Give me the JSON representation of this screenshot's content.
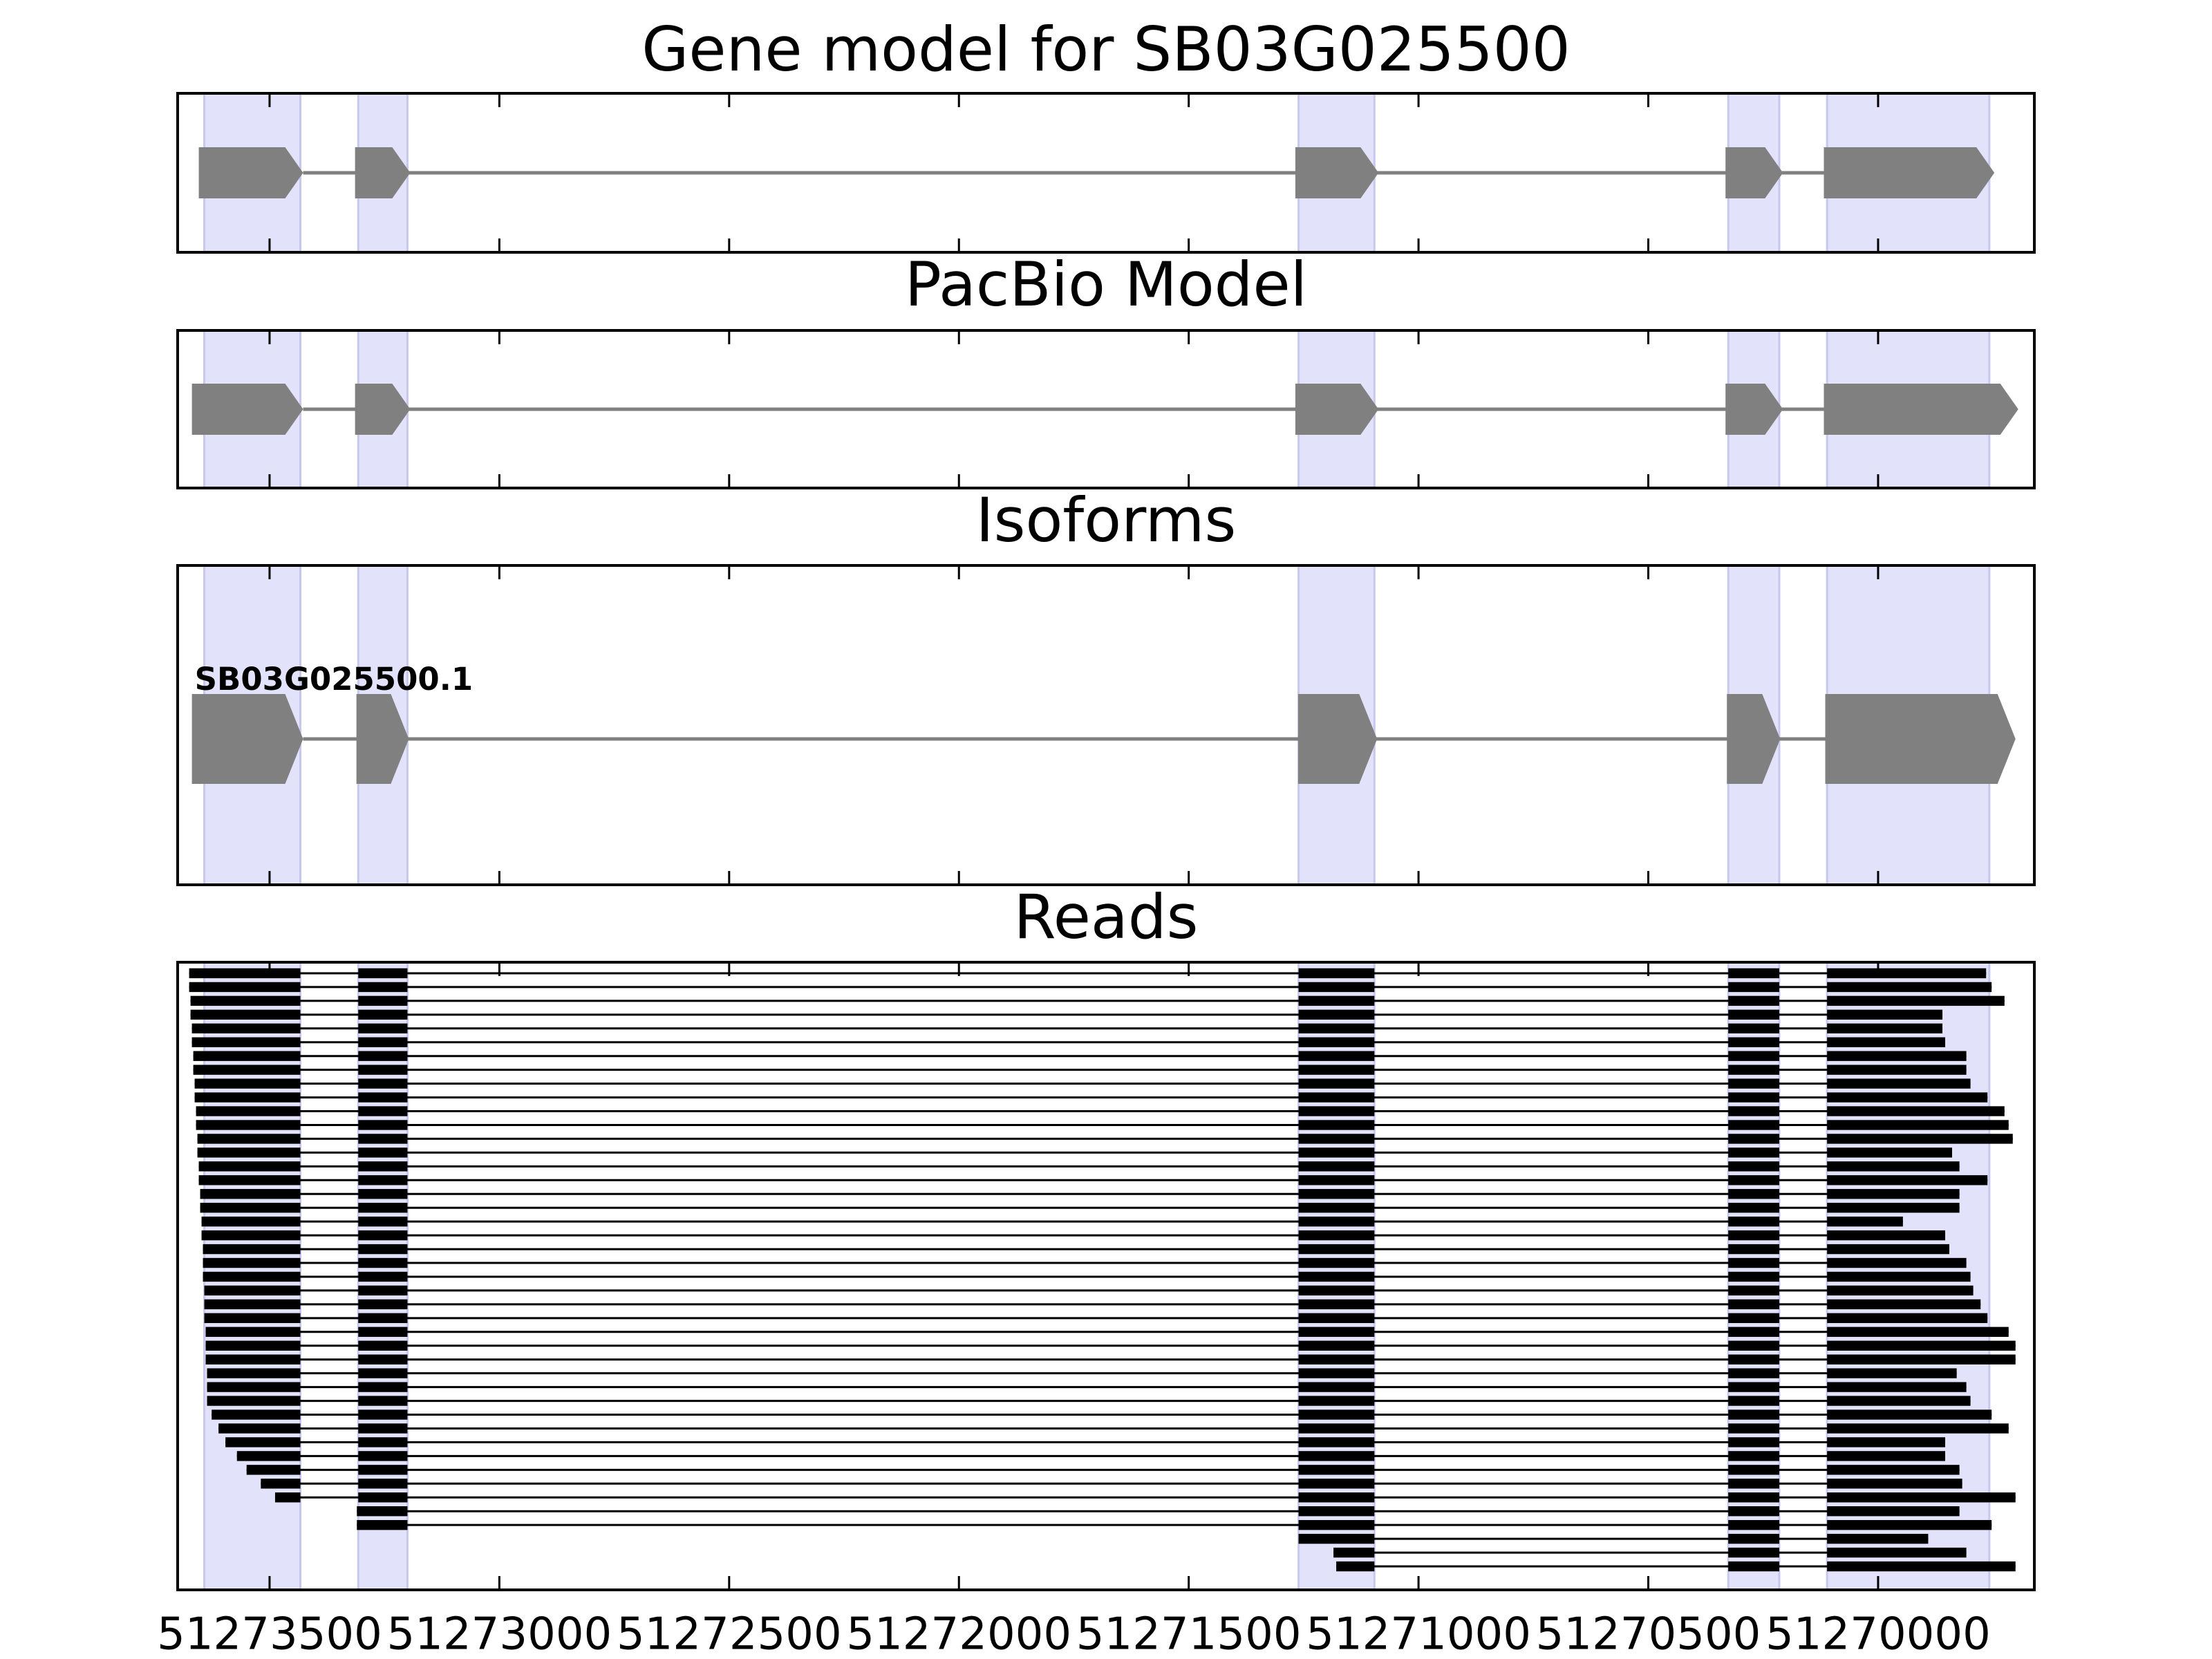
{
  "chart_data": {
    "type": "gene_track",
    "xlim": [
      51273700,
      51269660
    ],
    "xticks": [
      51273500,
      51273000,
      51272500,
      51272000,
      51271500,
      51271000,
      51270500,
      51270000
    ],
    "highlight_exons": [
      [
        51273642,
        51273433
      ],
      [
        51273307,
        51273200
      ],
      [
        51271261,
        51271096
      ],
      [
        51270326,
        51270215
      ],
      [
        51270111,
        51269758
      ]
    ],
    "highlight_color": "#e2e2fa",
    "exon_color": "#808080",
    "read_color": "#000000",
    "panels": [
      {
        "title": "Gene model for SB03G025500",
        "exons": [
          [
            51273654,
            51273427
          ],
          [
            51273314,
            51273194
          ],
          [
            51271268,
            51271087
          ],
          [
            51270332,
            51270207
          ],
          [
            51270118,
            51269747
          ]
        ]
      },
      {
        "title": "PacBio Model",
        "exons": [
          [
            51273669,
            51273427
          ],
          [
            51273314,
            51273194
          ],
          [
            51271268,
            51271087
          ],
          [
            51270332,
            51270207
          ],
          [
            51270118,
            51269695
          ]
        ]
      },
      {
        "title": "Isoforms",
        "label": "SB03G025500.1",
        "exons": [
          [
            51273669,
            51273427
          ],
          [
            51273311,
            51273197
          ],
          [
            51271262,
            51271090
          ],
          [
            51270329,
            51270213
          ],
          [
            51270115,
            51269701
          ]
        ]
      },
      {
        "title": "Reads",
        "read_starts": [
          51273675,
          51273675,
          51273672,
          51273672,
          51273669,
          51273669,
          51273666,
          51273666,
          51273663,
          51273663,
          51273660,
          51273660,
          51273657,
          51273657,
          51273654,
          51273654,
          51273651,
          51273651,
          51273648,
          51273648,
          51273645,
          51273645,
          51273645,
          51273642,
          51273642,
          51273642,
          51273639,
          51273639,
          51273639,
          51273636,
          51273636,
          51273636,
          51273626,
          51273611,
          51273596,
          51273571,
          51273550,
          51273519,
          51273488,
          51273310,
          51273310,
          51271261,
          51271185,
          51271179
        ],
        "read_ends": [
          51269765,
          51269753,
          51269725,
          51269860,
          51269860,
          51269854,
          51269808,
          51269808,
          51269799,
          51269762,
          51269725,
          51269716,
          51269707,
          51269839,
          51269823,
          51269762,
          51269823,
          51269823,
          51269946,
          51269854,
          51269845,
          51269808,
          51269799,
          51269793,
          51269777,
          51269762,
          51269716,
          51269701,
          51269701,
          51269829,
          51269808,
          51269799,
          51269753,
          51269716,
          51269854,
          51269854,
          51269823,
          51269817,
          51269701,
          51269823,
          51269753,
          51269891,
          51269808,
          51269701
        ]
      }
    ]
  }
}
